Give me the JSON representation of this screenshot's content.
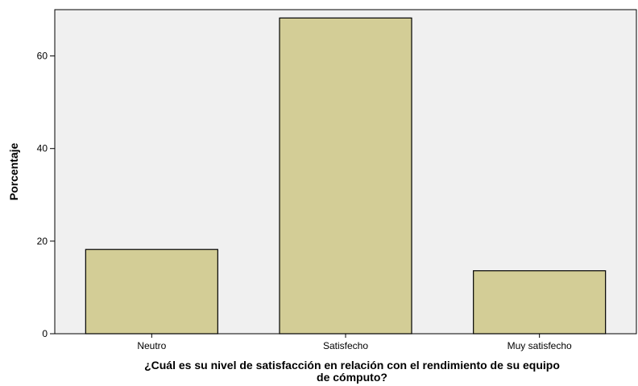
{
  "chart_data": {
    "type": "bar",
    "categories": [
      "Neutro",
      "Satisfecho",
      "Muy satisfecho"
    ],
    "values": [
      18.2,
      68.2,
      13.6
    ],
    "xlabel": "¿Cuál es su nivel de satisfacción en relación con el rendimiento de su equipo de cómputo?",
    "xlabel_lines": [
      "¿Cuál es su nivel de satisfacción en relación con el rendimiento de su equipo",
      "de cómputo?"
    ],
    "ylabel": "Porcentaje",
    "ylim": [
      0,
      70
    ],
    "yticks": [
      0,
      20,
      40,
      60
    ],
    "grid": false,
    "colors": {
      "bar_fill": "#d3cd96",
      "bar_stroke": "#000000",
      "plot_background": "#f0f0f0",
      "axis": "#000000"
    }
  }
}
